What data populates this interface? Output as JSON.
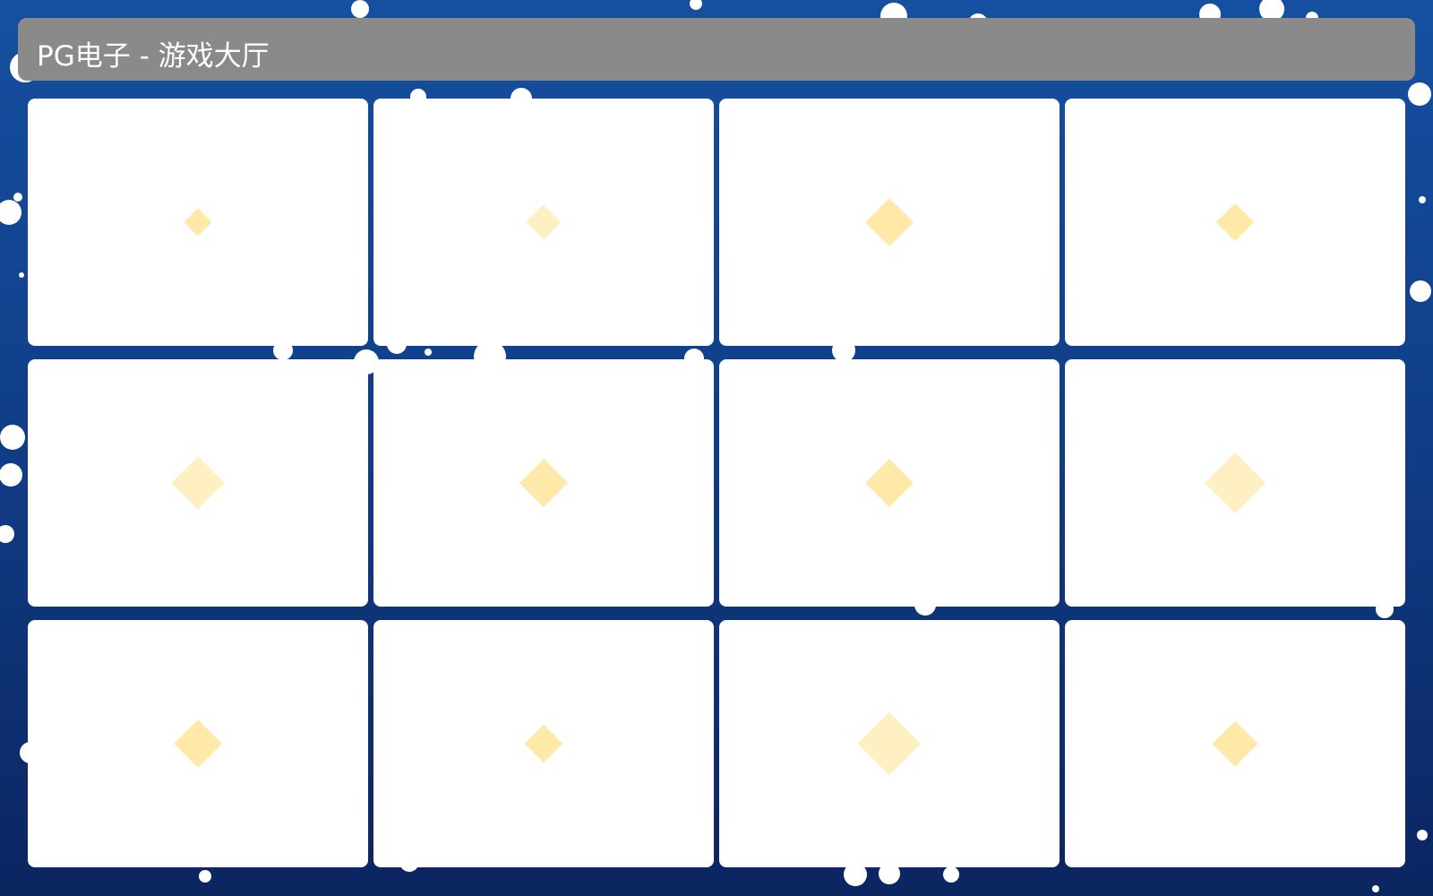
{
  "header": {
    "title": "PG电子 - 游戏大厅"
  },
  "colors": {
    "background_top": "#1550a0",
    "background_bottom": "#0b2560",
    "header": "#8a8a8a",
    "card": "#ffffff",
    "diamond": "#ffe9a8"
  },
  "games": [
    {
      "icon": "diamond-icon"
    },
    {
      "icon": "diamond-icon"
    },
    {
      "icon": "diamond-icon"
    },
    {
      "icon": "diamond-icon"
    },
    {
      "icon": "diamond-icon"
    },
    {
      "icon": "diamond-icon"
    },
    {
      "icon": "diamond-icon"
    },
    {
      "icon": "diamond-icon"
    },
    {
      "icon": "diamond-icon"
    },
    {
      "icon": "diamond-icon"
    },
    {
      "icon": "diamond-icon"
    },
    {
      "icon": "diamond-icon"
    }
  ]
}
